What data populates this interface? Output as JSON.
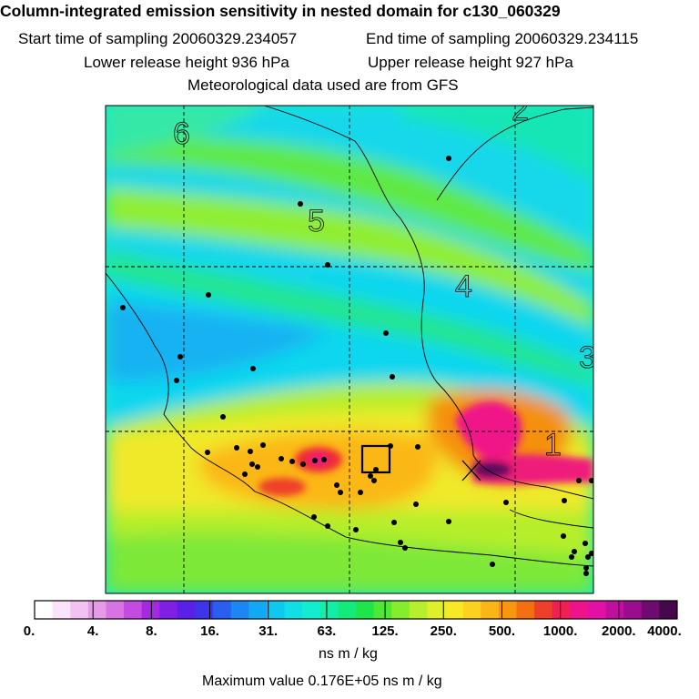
{
  "title": "Column-integrated emission sensitivity in nested domain for c130_060329",
  "start_label": "Start time of sampling 20060329.234057",
  "end_label": "End time of sampling 20060329.234115",
  "lower_label": "Lower release height  936 hPa",
  "upper_label": "Upper release height  927 hPa",
  "met_label": "Meteorological data used are from GFS",
  "colors": {
    "bins": [
      "#ffffff",
      "#fbe3fb",
      "#f3c2f3",
      "#e69be9",
      "#d873e3",
      "#c44be0",
      "#a42ae0",
      "#7f1fe5",
      "#5a20e8",
      "#3f35e8",
      "#2a5ef0",
      "#1b86f4",
      "#12a9f4",
      "#0fc8f0",
      "#10e0e6",
      "#12ecd0",
      "#13eea6",
      "#12ea79",
      "#1ee64a",
      "#4fe836",
      "#86ec2e",
      "#b8ef2c",
      "#dff02a",
      "#f6e926",
      "#fcd21e",
      "#fbb516",
      "#f8960e",
      "#f36f10",
      "#ee3f2a",
      "#f01f55",
      "#f0128a",
      "#e310a6",
      "#c20e9f",
      "#9a0d8f",
      "#6f0a70",
      "#44084b"
    ]
  },
  "chart_data": {
    "type": "heatmap",
    "title": "Column-integrated emission sensitivity in nested domain for c130_060329",
    "colorbar": {
      "tick_labels": [
        "0.",
        "4.",
        "8.",
        "16.",
        "31.",
        "63.",
        "125.",
        "250.",
        "500.",
        "1000.",
        "2000.",
        "4000."
      ],
      "tick_values": [
        0,
        4,
        8,
        16,
        31,
        63,
        125,
        250,
        500,
        1000,
        2000,
        4000
      ],
      "label": "ns m / kg"
    },
    "max_value_label": "Maximum value  0.176E+05 ns m / kg",
    "plume_contour_labels": [
      "1",
      "2",
      "3",
      "4",
      "5",
      "6"
    ],
    "max_sensitivity_region": "east-center, near X marker",
    "grid": true,
    "release_box": "center-south of domain"
  }
}
